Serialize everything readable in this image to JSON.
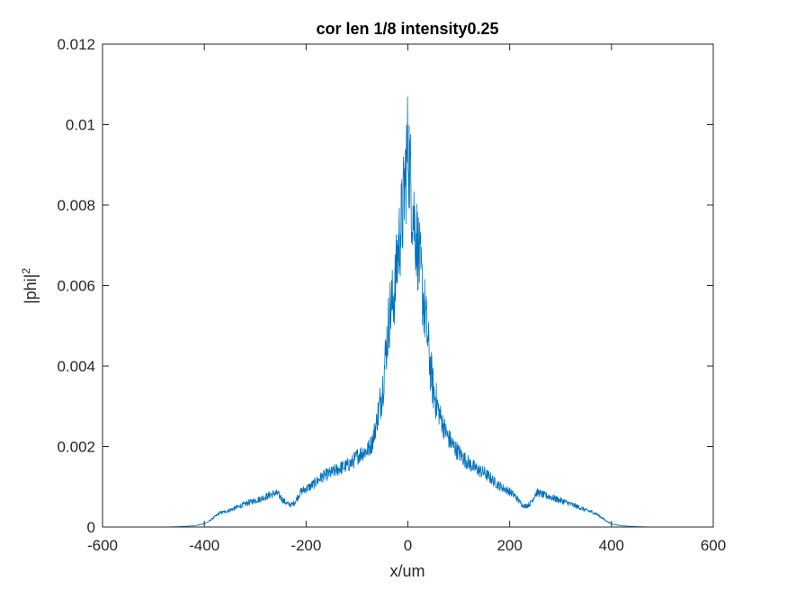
{
  "chart_data": {
    "type": "line",
    "title": "cor len 1/8 intensity0.25",
    "xlabel": "x/um",
    "ylabel_base": "|phi|",
    "ylabel_sup": "2",
    "xlim": [
      -600,
      600
    ],
    "ylim": [
      0,
      0.012
    ],
    "xticks": [
      -600,
      -400,
      -200,
      0,
      200,
      400,
      600
    ],
    "xtick_labels": [
      "-600",
      "-400",
      "-200",
      "0",
      "200",
      "400",
      "600"
    ],
    "yticks": [
      0,
      0.002,
      0.004,
      0.006,
      0.008,
      0.01,
      0.012
    ],
    "ytick_labels": [
      "0",
      "0.002",
      "0.004",
      "0.006",
      "0.008",
      "0.01",
      "0.012"
    ],
    "grid": false,
    "box": true,
    "series": [
      {
        "color": "#0072BD",
        "x": [
          -512,
          -480,
          -450,
          -420,
          -400,
          -390,
          -380,
          -370,
          -360,
          -350,
          -340,
          -330,
          -320,
          -310,
          -300,
          -290,
          -280,
          -270,
          -262,
          -255,
          -250,
          -245,
          -240,
          -235,
          -230,
          -225,
          -220,
          -215,
          -210,
          -200,
          -190,
          -180,
          -170,
          -160,
          -150,
          -140,
          -130,
          -120,
          -110,
          -100,
          -90,
          -80,
          -70,
          -60,
          -50,
          -45,
          -40,
          -35,
          -30,
          -25,
          -20,
          -15,
          -10,
          -5,
          -2,
          0,
          2,
          5,
          10,
          15,
          20,
          25,
          30,
          35,
          40,
          45,
          50,
          60,
          70,
          80,
          90,
          100,
          110,
          120,
          130,
          140,
          150,
          160,
          170,
          180,
          190,
          200,
          210,
          215,
          220,
          225,
          230,
          235,
          240,
          245,
          250,
          255,
          262,
          270,
          280,
          290,
          300,
          310,
          320,
          330,
          340,
          350,
          360,
          370,
          380,
          390,
          400,
          420,
          450,
          480,
          512
        ],
        "y": [
          0.0,
          0.0,
          1e-05,
          3e-05,
          8e-05,
          0.00015,
          0.00025,
          0.00035,
          0.00038,
          0.00042,
          0.00047,
          0.00052,
          0.00057,
          0.00062,
          0.00066,
          0.0007,
          0.00075,
          0.0008,
          0.00084,
          0.00082,
          0.00074,
          0.00066,
          0.00061,
          0.00057,
          0.00055,
          0.00058,
          0.00066,
          0.00078,
          0.00088,
          0.00095,
          0.00102,
          0.00112,
          0.00124,
          0.0013,
          0.00135,
          0.00142,
          0.00148,
          0.00152,
          0.0016,
          0.00175,
          0.00185,
          0.0019,
          0.0021,
          0.0027,
          0.0034,
          0.0041,
          0.0048,
          0.0054,
          0.0056,
          0.006,
          0.0068,
          0.0073,
          0.0078,
          0.0087,
          0.0092,
          0.0095,
          0.0093,
          0.0086,
          0.0079,
          0.0074,
          0.0069,
          0.0063,
          0.0057,
          0.0052,
          0.0045,
          0.0039,
          0.0034,
          0.0029,
          0.0025,
          0.0022,
          0.002,
          0.00185,
          0.0017,
          0.00158,
          0.00148,
          0.0014,
          0.00135,
          0.00124,
          0.00112,
          0.00102,
          0.00095,
          0.00088,
          0.00078,
          0.0007,
          0.00062,
          0.00055,
          0.00052,
          0.00054,
          0.00058,
          0.00068,
          0.00082,
          0.00086,
          0.00082,
          0.00078,
          0.00075,
          0.0007,
          0.00066,
          0.00062,
          0.00057,
          0.00052,
          0.00047,
          0.00042,
          0.00038,
          0.00033,
          0.00024,
          0.00015,
          8e-05,
          3e-05,
          1e-05,
          0.0,
          0.0
        ]
      }
    ]
  }
}
